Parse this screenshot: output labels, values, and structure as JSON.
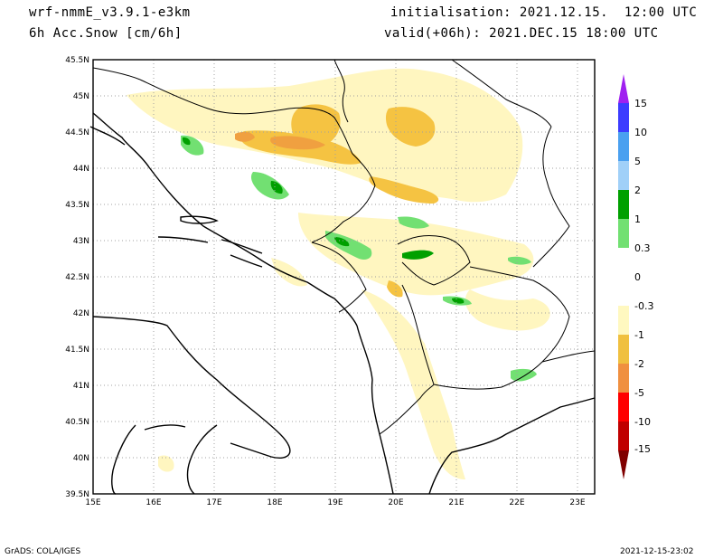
{
  "header": {
    "model": "wrf-nmmE_v3.9.1-e3km",
    "field": "6h Acc.Snow [cm/6h]",
    "init": "initialisation: 2021.12.15.  12:00 UTC",
    "valid": "valid(+06h): 2021.DEC.15 18:00 UTC"
  },
  "footer": {
    "credit": "GrADS: COLA/IGES",
    "timestamp": "2021-12-15-23:02"
  },
  "map": {
    "lon_labels": [
      "15E",
      "16E",
      "17E",
      "18E",
      "19E",
      "20E",
      "21E",
      "22E",
      "23E"
    ],
    "lat_labels": [
      "45.5N",
      "45N",
      "44.5N",
      "44N",
      "43.5N",
      "43N",
      "42.5N",
      "42N",
      "41.5N",
      "41N",
      "40.5N",
      "40N",
      "39.5N"
    ]
  },
  "legend": {
    "levels": [
      "15",
      "10",
      "5",
      "2",
      "1",
      "0.3",
      "0",
      "-0.3",
      "-1",
      "-2",
      "-5",
      "-10",
      "-15"
    ],
    "colors": [
      "#a020f0",
      "#3c3cff",
      "#4aa0f0",
      "#a0d0f8",
      "#00a000",
      "#72e072",
      "#ffffff",
      "#ffffff",
      "#fff8c0",
      "#f0c040",
      "#f09040",
      "#ff0000",
      "#c00000",
      "#a01010",
      "#800000"
    ]
  },
  "colors": {
    "light_yellow": "#fff6c0",
    "yellow": "#f5c342",
    "orange": "#f0a040",
    "light_green": "#72e072",
    "green": "#00a000",
    "coast": "#000000",
    "grid": "#a0a0a0"
  }
}
